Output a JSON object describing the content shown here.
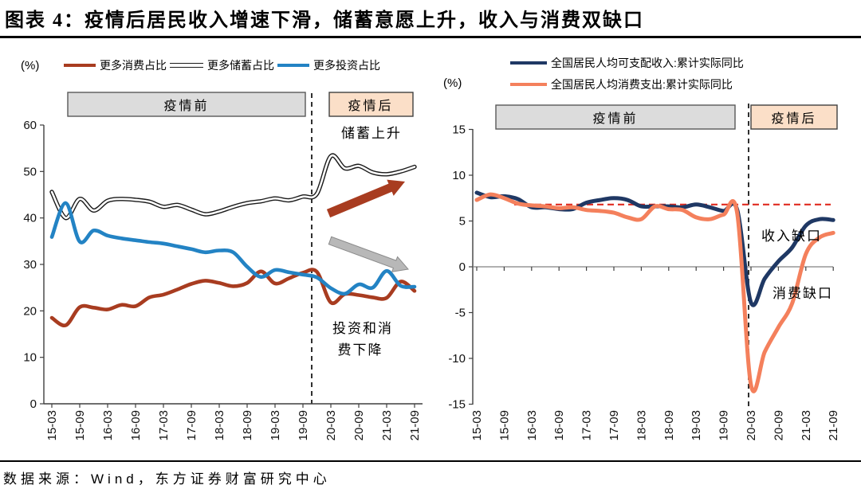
{
  "header": {
    "title": "图表 4：疫情后居民收入增速下滑，储蓄意愿上升，收入与消费双缺口"
  },
  "footer": {
    "source": "数据来源：Wind，东方证券财富研究中心"
  },
  "chart_data": [
    {
      "type": "line",
      "unit": "(%)",
      "quarters": [
        "15-03",
        "15-06",
        "15-09",
        "15-12",
        "16-03",
        "16-06",
        "16-09",
        "16-12",
        "17-03",
        "17-06",
        "17-09",
        "17-12",
        "18-03",
        "18-06",
        "18-09",
        "18-12",
        "19-03",
        "19-06",
        "19-09",
        "19-12",
        "20-03",
        "20-06",
        "20-09",
        "20-12",
        "21-03",
        "21-06",
        "21-09"
      ],
      "x_tick_labels": [
        "15-03",
        "15-09",
        "16-03",
        "16-09",
        "17-03",
        "17-09",
        "18-03",
        "18-09",
        "19-03",
        "19-09",
        "20-03",
        "20-09",
        "21-03",
        "21-09"
      ],
      "ylim": [
        0,
        60
      ],
      "yticks": [
        0,
        10,
        20,
        30,
        40,
        50,
        60
      ],
      "grid": false,
      "legend_position": "top",
      "pandemic_divider_after": "19-12",
      "series": [
        {
          "name": "更多消费占比",
          "color": "#A83C20",
          "values": [
            18.5,
            16.9,
            20.8,
            20.7,
            20.3,
            21.3,
            21.0,
            22.9,
            23.5,
            24.6,
            25.8,
            26.5,
            26.0,
            25.3,
            26.0,
            28.5,
            25.9,
            27.0,
            28.2,
            28.4,
            21.8,
            23.6,
            23.4,
            22.9,
            22.8,
            26.3,
            24.3
          ]
        },
        {
          "name": "更多储蓄占比",
          "color": "#FFFFFF",
          "outline": "#1A1A1A",
          "values": [
            45.6,
            40.0,
            44.1,
            41.6,
            43.7,
            44.1,
            43.9,
            43.5,
            42.4,
            42.8,
            41.8,
            40.8,
            41.4,
            42.4,
            43.2,
            43.6,
            44.2,
            43.8,
            44.6,
            45.2,
            53.3,
            50.7,
            51.2,
            49.8,
            49.4,
            50.0,
            51.0
          ]
        },
        {
          "name": "更多投资占比",
          "color": "#2383C4",
          "values": [
            35.9,
            43.2,
            34.9,
            37.3,
            36.2,
            35.6,
            35.2,
            34.8,
            34.5,
            33.9,
            33.3,
            32.6,
            33.0,
            32.6,
            29.5,
            27.3,
            28.8,
            28.3,
            27.8,
            27.2,
            24.9,
            23.7,
            25.7,
            25.0,
            28.6,
            25.4,
            25.2
          ]
        }
      ],
      "annotations": {
        "pre": "疫情前",
        "post": "疫情后",
        "savings_up": "储蓄上升",
        "decline_line1": "投资和消",
        "decline_line2": "费下降"
      },
      "arrows": {
        "up_color": "#A83C20",
        "down_color": "#B8B8B8"
      }
    },
    {
      "type": "line",
      "unit": "(%)",
      "quarters": [
        "15-03",
        "15-06",
        "15-09",
        "15-12",
        "16-03",
        "16-06",
        "16-09",
        "16-12",
        "17-03",
        "17-06",
        "17-09",
        "17-12",
        "18-03",
        "18-06",
        "18-09",
        "18-12",
        "19-03",
        "19-06",
        "19-09",
        "19-12",
        "20-03",
        "20-06",
        "20-09",
        "20-12",
        "21-03",
        "21-06",
        "21-09"
      ],
      "x_tick_labels": [
        "15-03",
        "15-09",
        "16-03",
        "16-09",
        "17-03",
        "17-09",
        "18-03",
        "18-09",
        "19-03",
        "19-09",
        "20-03",
        "20-09",
        "21-03",
        "21-09"
      ],
      "ylim": [
        -15,
        15
      ],
      "yticks": [
        -15,
        -10,
        -5,
        0,
        5,
        10,
        15
      ],
      "grid": false,
      "legend_position": "top",
      "pandemic_divider_at": "20-03",
      "reference_line": {
        "value": 6.8,
        "color": "#E02B20",
        "style": "dashed"
      },
      "series": [
        {
          "name": "全国居民人均可支配收入:累计实际同比",
          "color": "#1F3864",
          "values": [
            8.1,
            7.6,
            7.7,
            7.4,
            6.5,
            6.5,
            6.3,
            6.3,
            7.0,
            7.3,
            7.5,
            7.3,
            6.6,
            6.6,
            6.6,
            6.5,
            6.8,
            6.5,
            6.1,
            6.2,
            -3.9,
            -1.3,
            0.6,
            2.1,
            4.5,
            5.2,
            5.1
          ]
        },
        {
          "name": "全国居民人均消费支出:累计实际同比",
          "color": "#F4805C",
          "values": [
            7.3,
            7.9,
            7.5,
            6.9,
            6.7,
            6.6,
            6.4,
            6.5,
            6.2,
            6.1,
            5.9,
            5.4,
            5.2,
            6.6,
            6.3,
            6.2,
            5.4,
            5.2,
            5.7,
            5.8,
            -12.9,
            -9.3,
            -6.6,
            -4.0,
            1.4,
            3.2,
            3.7
          ]
        }
      ],
      "annotations": {
        "pre": "疫情前",
        "post": "疫情后",
        "income_gap": "收入缺口",
        "consumption_gap": "消费缺口"
      }
    }
  ]
}
